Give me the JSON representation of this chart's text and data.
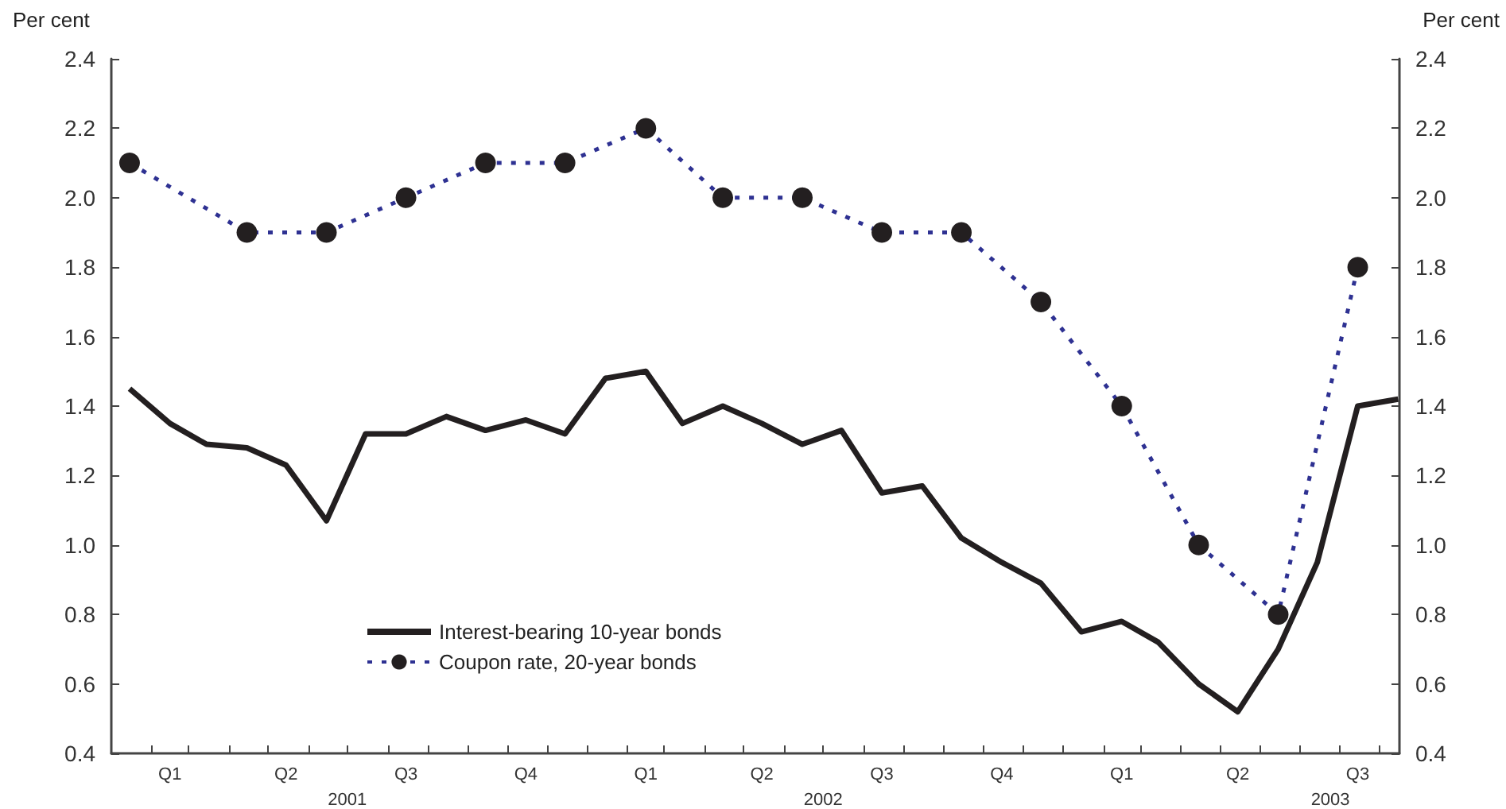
{
  "chart_data": {
    "type": "line",
    "ylabel": "Per cent",
    "y2label": "Per cent",
    "x": [
      "2001-01-15",
      "2001-02-15",
      "2001-03-15",
      "2001-04-15",
      "2001-05-15",
      "2001-06-15",
      "2001-07-15",
      "2001-08-15",
      "2001-09-15",
      "2001-10-15",
      "2001-11-15",
      "2001-12-15",
      "2002-01-15",
      "2002-02-15",
      "2002-03-15",
      "2002-04-15",
      "2002-05-15",
      "2002-06-15",
      "2002-07-15",
      "2002-08-15",
      "2002-09-15",
      "2002-10-15",
      "2002-11-15",
      "2002-12-15",
      "2003-01-15",
      "2003-02-15",
      "2003-03-15",
      "2003-04-15",
      "2003-05-15",
      "2003-06-15",
      "2003-07-15",
      "2003-08-15",
      "2003-09-15"
    ],
    "series": [
      {
        "name": "Interest-bearing 10-year bonds",
        "color": "#231f20",
        "marker": "none",
        "line_style": "solid",
        "values": [
          1.45,
          1.35,
          1.29,
          1.28,
          1.23,
          1.07,
          1.32,
          1.32,
          1.37,
          1.33,
          1.36,
          1.32,
          1.48,
          1.5,
          1.35,
          1.4,
          1.35,
          1.29,
          1.33,
          1.15,
          1.17,
          1.02,
          0.95,
          0.89,
          0.75,
          0.78,
          0.72,
          0.6,
          0.52,
          0.7,
          0.95,
          1.4,
          1.42
        ]
      },
      {
        "name": "Coupon rate, 20-year bonds",
        "color": "#2e3192",
        "marker": "circle",
        "line_style": "dotted",
        "x": [
          "2001-01-15",
          "2001-04-15",
          "2001-06-15",
          "2001-08-15",
          "2001-10-15",
          "2001-12-15",
          "2002-02-15",
          "2002-04-15",
          "2002-06-15",
          "2002-08-15",
          "2002-10-15",
          "2002-12-15",
          "2003-02-15",
          "2003-04-15",
          "2003-06-15",
          "2003-08-15"
        ],
        "values": [
          2.1,
          1.9,
          1.9,
          2.0,
          2.1,
          2.1,
          2.2,
          2.0,
          2.0,
          1.9,
          1.9,
          1.7,
          1.4,
          1.0,
          0.8,
          1.8
        ]
      }
    ],
    "xlim": [
      "2001-01-01",
      "2003-09-16"
    ],
    "xticks": [
      {
        "value": "2001-02-01",
        "label": null
      },
      {
        "value": "2001-03-01",
        "label": null
      },
      {
        "value": "2001-04-01",
        "label": null
      },
      {
        "value": "2001-05-01",
        "label": null
      },
      {
        "value": "2001-06-01",
        "label": null
      },
      {
        "value": "2001-07-01",
        "label": null
      },
      {
        "value": "2001-08-01",
        "label": null
      },
      {
        "value": "2001-09-01",
        "label": null
      },
      {
        "value": "2001-10-01",
        "label": null
      },
      {
        "value": "2001-11-01",
        "label": null
      },
      {
        "value": "2001-12-01",
        "label": null
      },
      {
        "value": "2002-01-01",
        "label": null
      },
      {
        "value": "2002-02-01",
        "label": null
      },
      {
        "value": "2002-03-01",
        "label": null
      },
      {
        "value": "2002-04-01",
        "label": null
      },
      {
        "value": "2002-05-01",
        "label": null
      },
      {
        "value": "2002-06-01",
        "label": null
      },
      {
        "value": "2002-07-01",
        "label": null
      },
      {
        "value": "2002-08-01",
        "label": null
      },
      {
        "value": "2002-09-01",
        "label": null
      },
      {
        "value": "2002-10-01",
        "label": null
      },
      {
        "value": "2002-11-01",
        "label": null
      },
      {
        "value": "2002-12-01",
        "label": null
      },
      {
        "value": "2003-01-01",
        "label": null
      },
      {
        "value": "2003-02-01",
        "label": null
      },
      {
        "value": "2003-03-01",
        "label": null
      },
      {
        "value": "2003-04-01",
        "label": null
      },
      {
        "value": "2003-05-01",
        "label": null
      },
      {
        "value": "2003-06-01",
        "label": null
      },
      {
        "value": "2003-07-01",
        "label": null
      },
      {
        "value": "2003-08-01",
        "label": null
      },
      {
        "value": "2003-09-01",
        "label": null
      },
      {
        "value": "2001-02-15",
        "label": "Q1"
      },
      {
        "value": "2001-05-15",
        "label": "Q2"
      },
      {
        "value": "2001-08-15",
        "label": "Q3"
      },
      {
        "value": "2001-11-15",
        "label": "Q4"
      },
      {
        "value": "2002-02-15",
        "label": "Q1"
      },
      {
        "value": "2002-05-15",
        "label": "Q2"
      },
      {
        "value": "2002-08-15",
        "label": "Q3"
      },
      {
        "value": "2002-11-15",
        "label": "Q4"
      },
      {
        "value": "2003-02-15",
        "label": "Q1"
      },
      {
        "value": "2003-05-15",
        "label": "Q2"
      },
      {
        "value": "2003-08-15",
        "label": "Q3"
      }
    ],
    "x2lim": [
      "2001-01-01",
      "2003-09-16"
    ],
    "x2ticks": [
      {
        "value": "2001-07-01",
        "label": "2001"
      },
      {
        "value": "2002-07-01",
        "label": "2002"
      },
      {
        "value": "2003-07-25",
        "label": "2003"
      }
    ],
    "ylim": [
      0.4,
      2.4
    ],
    "yticks": [
      0.4,
      0.6,
      0.8,
      {
        "value": 1,
        "label": "1.0"
      },
      1.2,
      1.4,
      1.6,
      1.8,
      {
        "value": 2,
        "label": "2.0"
      },
      2.2,
      2.4
    ],
    "y2lim": [
      0.4,
      2.4
    ],
    "y2ticks": [
      0.4,
      0.6,
      0.8,
      {
        "value": 1,
        "label": "1.0"
      },
      1.2,
      1.4,
      1.6,
      1.8,
      {
        "value": 2,
        "label": "2.0"
      },
      2.2,
      2.4
    ],
    "grid": false,
    "legend": "bottom left"
  }
}
